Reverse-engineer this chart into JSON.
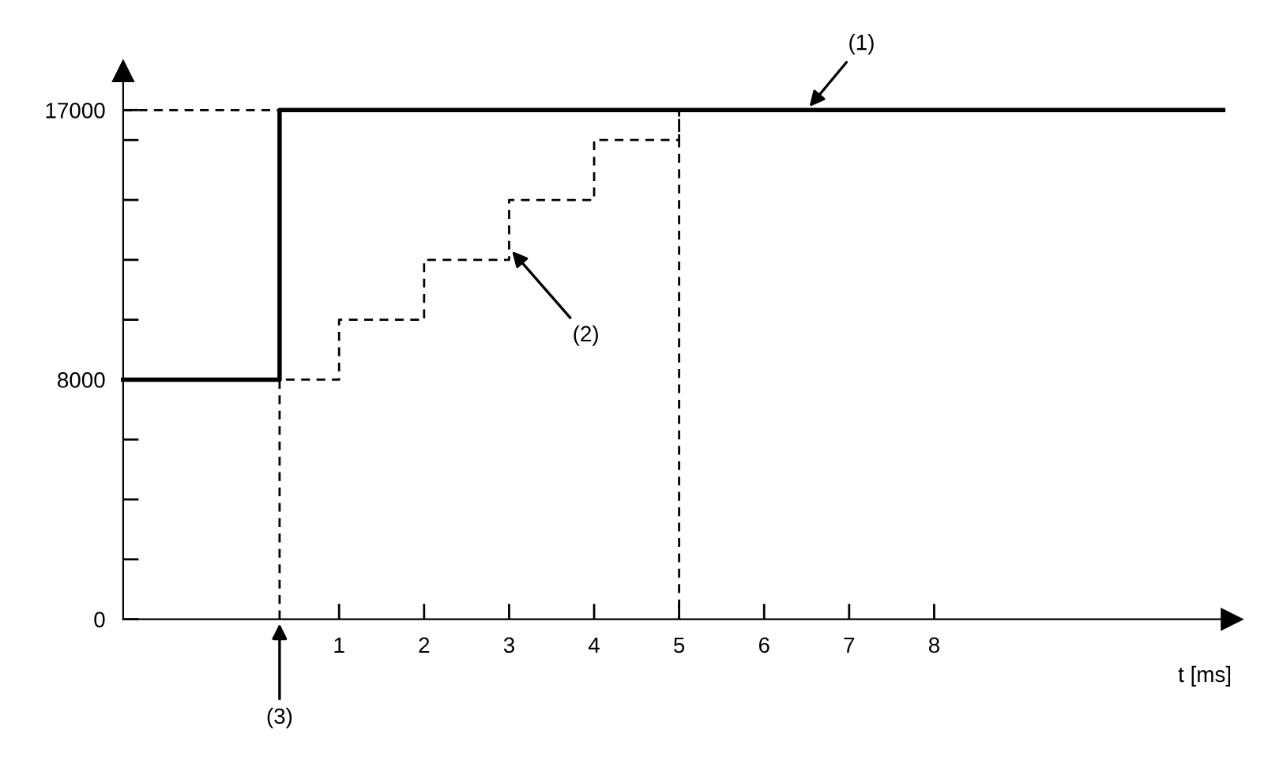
{
  "chart_data": {
    "type": "line",
    "xlabel": "t [ms]",
    "xlim": [
      -1.54,
      11.5
    ],
    "ylim": [
      0,
      18300
    ],
    "xticks": [
      1,
      2,
      3,
      4,
      5,
      6,
      7,
      8
    ],
    "yticks": [
      0,
      {
        "value": 2000,
        "label": null
      },
      {
        "value": 4000,
        "label": null
      },
      {
        "value": 6000,
        "label": null
      },
      8000,
      {
        "value": 10000,
        "label": null
      },
      {
        "value": 12000,
        "label": null
      },
      {
        "value": 14000,
        "label": null
      },
      {
        "value": 16000,
        "label": null
      },
      17000
    ],
    "grid": false,
    "legend": false,
    "marker": "none",
    "series": [
      {
        "color": "#000000",
        "line_style": "solid",
        "x": [
          -1.54,
          0.3,
          0.3,
          11.4
        ],
        "values": [
          8000,
          8000,
          17000,
          17000
        ]
      },
      {
        "color": "#000000",
        "line_style": "dashed",
        "x": [
          0.3,
          0.3,
          1,
          1,
          2,
          2,
          3,
          3,
          4,
          4,
          5,
          5,
          5
        ],
        "values": [
          0,
          8000,
          8000,
          10000,
          10000,
          12000,
          12000,
          14000,
          14000,
          16000,
          16000,
          17000,
          0
        ]
      },
      {
        "color": "#000000",
        "line_style": "dashed",
        "x": [
          -1.54,
          0.3
        ],
        "values": [
          17000,
          17000
        ]
      }
    ],
    "annotations": [
      {
        "text": "(1)",
        "x": 6.5,
        "y": 17000
      },
      {
        "text": "(2)",
        "x": 3.0,
        "y": 12400
      },
      {
        "text": "(3)",
        "x": 0.3,
        "y": 0
      }
    ]
  }
}
